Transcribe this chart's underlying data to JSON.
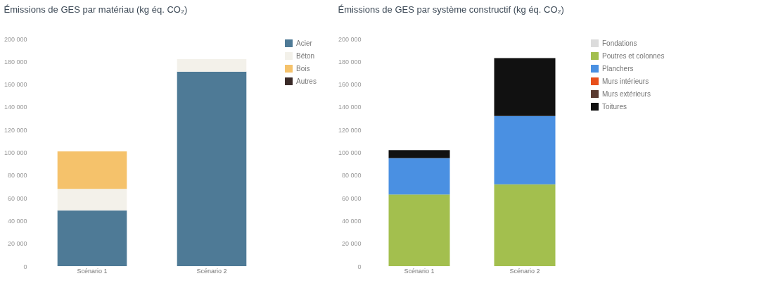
{
  "chart_data": [
    {
      "type": "bar",
      "title": "Émissions de GES par matériau (kg éq. CO₂)",
      "categories": [
        "Scénario 1",
        "Scénario 2"
      ],
      "stacked": true,
      "legend": "right",
      "grid": false,
      "ylim": [
        0,
        200000
      ],
      "yticks": [
        {
          "value": 0,
          "label": "0"
        },
        {
          "value": 20000,
          "label": "20 000"
        },
        {
          "value": 40000,
          "label": "40 000"
        },
        {
          "value": 60000,
          "label": "60 000"
        },
        {
          "value": 80000,
          "label": "80 000"
        },
        {
          "value": 100000,
          "label": "100 000"
        },
        {
          "value": 120000,
          "label": "120 000"
        },
        {
          "value": 140000,
          "label": "140 000"
        },
        {
          "value": 160000,
          "label": "160 000"
        },
        {
          "value": 180000,
          "label": "180 000"
        },
        {
          "value": 200000,
          "label": "200 000"
        }
      ],
      "series": [
        {
          "name": "Acier",
          "color": "#4e7a96",
          "values": [
            49000,
            171000
          ]
        },
        {
          "name": "Béton",
          "color": "#f3f1ea",
          "values": [
            19000,
            11000
          ]
        },
        {
          "name": "Bois",
          "color": "#f5c26b",
          "values": [
            33000,
            0
          ]
        },
        {
          "name": "Autres",
          "color": "#3a2a28",
          "values": [
            0,
            0
          ]
        }
      ]
    },
    {
      "type": "bar",
      "title": "Émissions de GES par système constructif (kg éq. CO₂)",
      "categories": [
        "Scénario 1",
        "Scénario 2"
      ],
      "stacked": true,
      "legend": "right",
      "grid": false,
      "ylim": [
        0,
        200000
      ],
      "yticks": [
        {
          "value": 0,
          "label": "0"
        },
        {
          "value": 20000,
          "label": "20 000"
        },
        {
          "value": 40000,
          "label": "40 000"
        },
        {
          "value": 60000,
          "label": "60 000"
        },
        {
          "value": 80000,
          "label": "80 000"
        },
        {
          "value": 100000,
          "label": "100 000"
        },
        {
          "value": 120000,
          "label": "120 000"
        },
        {
          "value": 140000,
          "label": "140 000"
        },
        {
          "value": 160000,
          "label": "160 000"
        },
        {
          "value": 180000,
          "label": "180 000"
        },
        {
          "value": 200000,
          "label": "200 000"
        }
      ],
      "series": [
        {
          "name": "Fondations",
          "color": "#dcdcdc",
          "values": [
            0,
            0
          ]
        },
        {
          "name": "Poutres et colonnes",
          "color": "#a3bf4e",
          "values": [
            63000,
            72000
          ]
        },
        {
          "name": "Planchers",
          "color": "#4a90e2",
          "values": [
            32000,
            60000
          ]
        },
        {
          "name": "Murs intérieurs",
          "color": "#e8501c",
          "values": [
            0,
            0
          ]
        },
        {
          "name": "Murs extérieurs",
          "color": "#5a3a30",
          "values": [
            0,
            0
          ]
        },
        {
          "name": "Toitures",
          "color": "#111111",
          "values": [
            7000,
            51000
          ]
        }
      ]
    }
  ]
}
